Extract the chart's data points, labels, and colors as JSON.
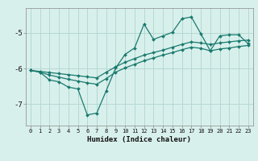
{
  "xlabel": "Humidex (Indice chaleur)",
  "x": [
    0,
    1,
    2,
    3,
    4,
    5,
    6,
    7,
    8,
    9,
    10,
    11,
    12,
    13,
    14,
    15,
    16,
    17,
    18,
    19,
    20,
    21,
    22,
    23
  ],
  "line_jagged": [
    -6.05,
    -6.1,
    -6.32,
    -6.37,
    -6.52,
    -6.57,
    -7.3,
    -7.25,
    -6.62,
    -5.98,
    -5.6,
    -5.42,
    -4.75,
    -5.18,
    -5.08,
    -4.98,
    -4.6,
    -4.55,
    -5.02,
    -5.5,
    -5.08,
    -5.05,
    -5.05,
    -5.3
  ],
  "line_upper": [
    -6.05,
    -6.08,
    -6.11,
    -6.14,
    -6.17,
    -6.2,
    -6.23,
    -6.26,
    -6.1,
    -5.95,
    -5.82,
    -5.72,
    -5.62,
    -5.55,
    -5.48,
    -5.4,
    -5.32,
    -5.25,
    -5.28,
    -5.32,
    -5.28,
    -5.25,
    -5.22,
    -5.2
  ],
  "line_lower": [
    -6.05,
    -6.1,
    -6.18,
    -6.24,
    -6.3,
    -6.35,
    -6.4,
    -6.44,
    -6.28,
    -6.1,
    -5.98,
    -5.88,
    -5.78,
    -5.7,
    -5.62,
    -5.55,
    -5.47,
    -5.4,
    -5.43,
    -5.5,
    -5.45,
    -5.42,
    -5.38,
    -5.35
  ],
  "line_color": "#1a7a6e",
  "bg_color": "#d8f0ec",
  "grid_color": "#b5d8d2",
  "ylim": [
    -7.6,
    -4.3
  ],
  "yticks": [
    -7,
    -6,
    -5
  ],
  "xlim": [
    -0.5,
    23.5
  ]
}
